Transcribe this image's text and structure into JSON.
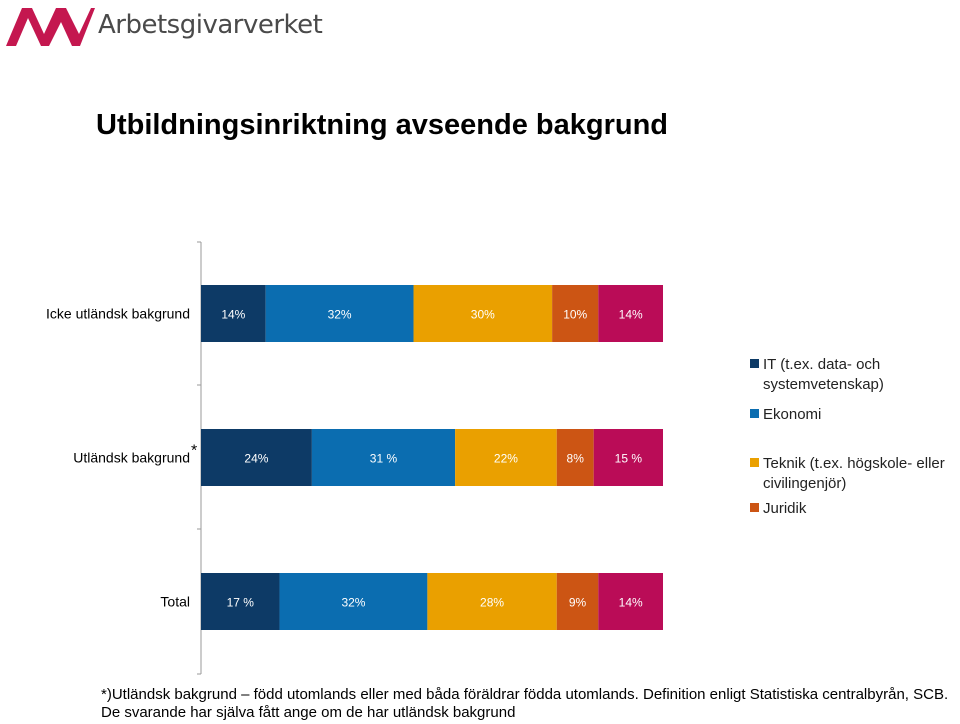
{
  "logo": {
    "text": "Arbetsgivarverket",
    "mark_color": "#c4174f"
  },
  "title": "Utbildningsinriktning avseende bakgrund",
  "chart_data": {
    "type": "bar",
    "orientation": "horizontal",
    "stacked": true,
    "categories": [
      "Icke utländsk bakgrund",
      "Utländsk bakgrund",
      "Total"
    ],
    "category_markers": [
      "",
      "*",
      ""
    ],
    "series": [
      {
        "name": "IT (t.ex. data- och systemvetenskap)",
        "color": "#0d3a66",
        "values": [
          14,
          24,
          17
        ],
        "labels": [
          "14%",
          "24%",
          "17 %"
        ]
      },
      {
        "name": "Ekonomi",
        "color": "#0b6db0",
        "values": [
          32,
          31,
          32
        ],
        "labels": [
          "32%",
          "31 %",
          "32%"
        ]
      },
      {
        "name": "Teknik (t.ex. högskole- eller civilingenjör)",
        "color": "#eaa000",
        "values": [
          30,
          22,
          28
        ],
        "labels": [
          "30%",
          "22%",
          "28%"
        ]
      },
      {
        "name": "Juridik",
        "color": "#cc5514",
        "values": [
          10,
          8,
          9
        ],
        "labels": [
          "10%",
          "8%",
          "9%"
        ]
      },
      {
        "name": "",
        "color": "#ba0c57",
        "values": [
          14,
          15,
          14
        ],
        "labels": [
          "14%",
          "15 %",
          "14%"
        ]
      }
    ],
    "xlim": [
      0,
      100
    ],
    "grid": false,
    "legend_position": "right"
  },
  "footnote": {
    "line1": "*)Utländsk bakgrund – född utomlands eller med båda föräldrar födda utomlands. Definition enligt Statistiska centralbyrån, SCB.",
    "line2": "De svarande har själva fått ange om de har utländsk bakgrund"
  }
}
